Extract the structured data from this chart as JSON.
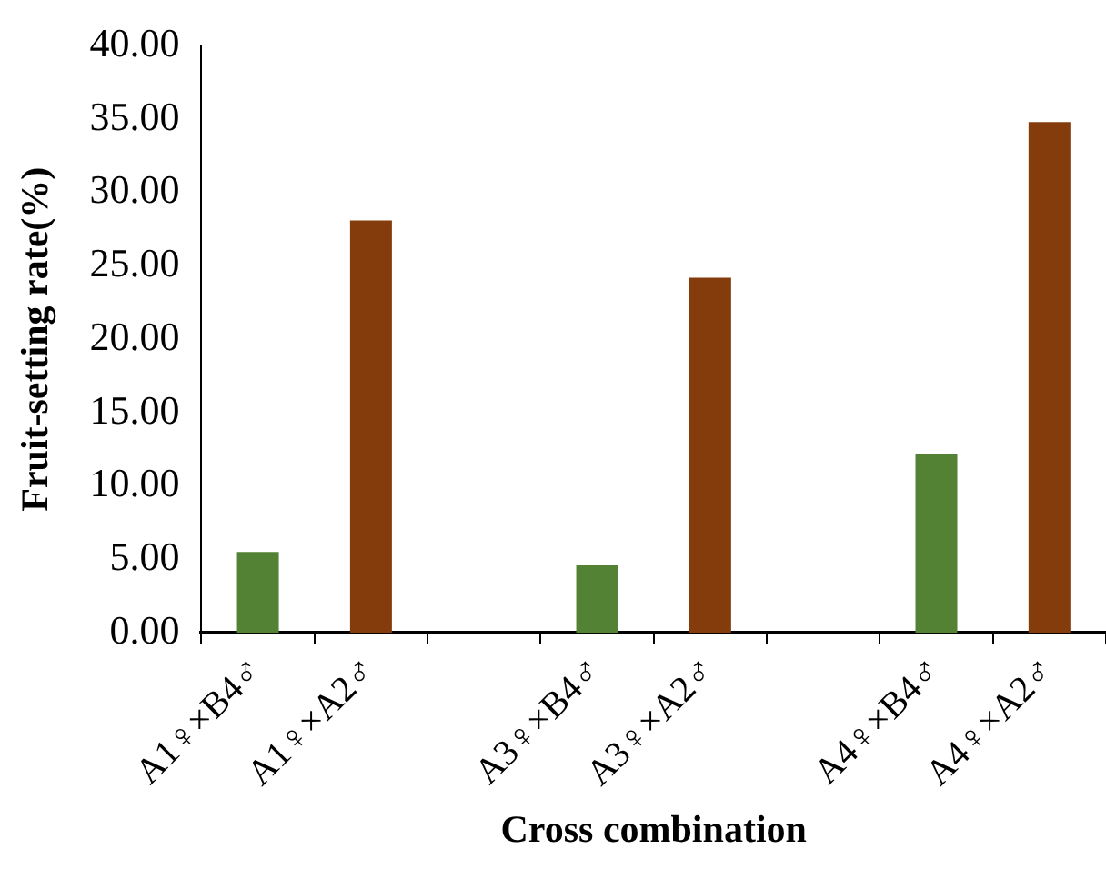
{
  "chart_data": {
    "type": "bar",
    "xlabel": "Cross combination",
    "ylabel": "Fruit-setting rate(%)",
    "categories": [
      "A1♀×B4♂",
      "A1♀×A2♂",
      null,
      "A3♀×B4♂",
      "A3♀×A2♂",
      null,
      "A4♀×B4♂",
      "A4♀×A2♂"
    ],
    "values": [
      5.5,
      28.1,
      null,
      4.6,
      24.2,
      null,
      12.2,
      34.8
    ],
    "colors": [
      "#548235",
      "#843c0c",
      null,
      "#548235",
      "#843c0c",
      null,
      "#548235",
      "#843c0c"
    ],
    "ylim": [
      0,
      40
    ],
    "yticks": [
      {
        "value": 0,
        "label": "0.00"
      },
      {
        "value": 5,
        "label": "5.00"
      },
      {
        "value": 10,
        "label": "10.00"
      },
      {
        "value": 15,
        "label": "15.00"
      },
      {
        "value": 20,
        "label": "20.00"
      },
      {
        "value": 25,
        "label": "25.00"
      },
      {
        "value": 30,
        "label": "30.00"
      },
      {
        "value": 35,
        "label": "35.00"
      },
      {
        "value": 40,
        "label": "40.00"
      }
    ],
    "grid": false,
    "legend": false
  }
}
